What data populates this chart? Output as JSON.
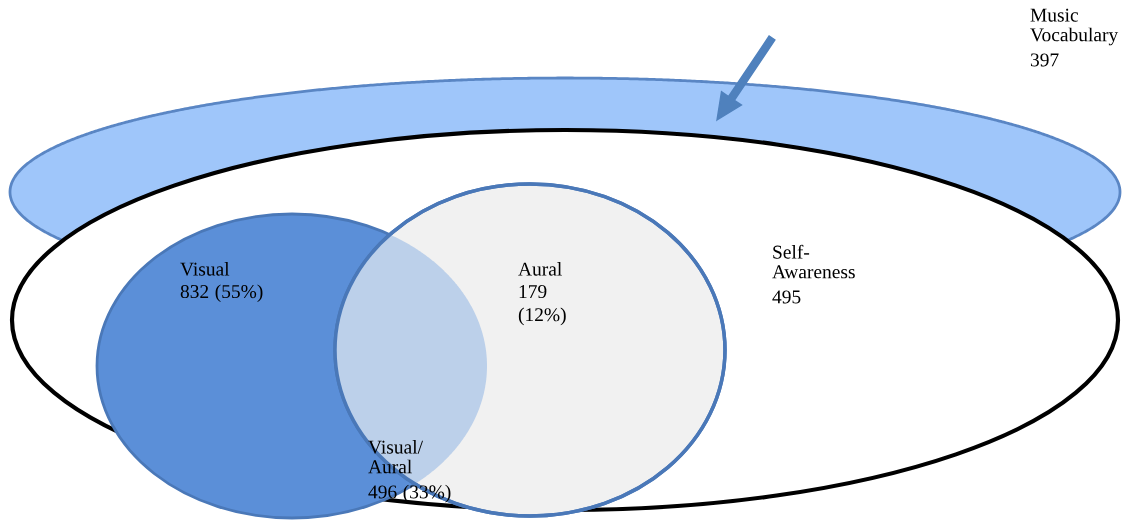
{
  "chart_data": {
    "type": "other",
    "categories": [
      "Visual",
      "Visual/\nAural",
      "Aural",
      "Self-\nAwareness",
      "Music\nVocabulary"
    ],
    "values": [
      832,
      496,
      179,
      495,
      397
    ],
    "data_labels": true,
    "annotations": [
      "(55%)",
      "(33%)",
      "(12%)"
    ],
    "colors": [
      "#5b8fd8",
      "#bcd0ea",
      "#f1f1f1",
      "#ffffff",
      "#9fc6fa"
    ]
  }
}
